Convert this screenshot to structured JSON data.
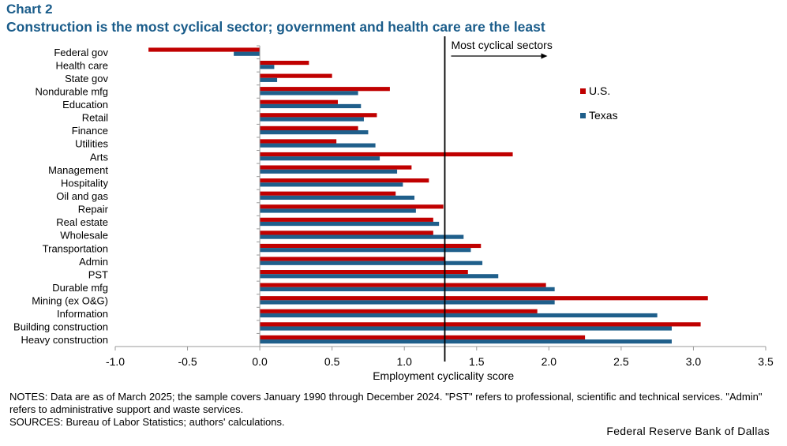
{
  "header": {
    "chart_label": "Chart 2",
    "title": "Construction is the most cyclical sector; government and health care are the least"
  },
  "chart_data": {
    "type": "bar",
    "orientation": "horizontal",
    "categories": [
      "Federal gov",
      "Health care",
      "State gov",
      "Nondurable mfg",
      "Education",
      "Retail",
      "Finance",
      "Utilities",
      "Arts",
      "Management",
      "Hospitality",
      "Oil and gas",
      "Repair",
      "Real estate",
      "Wholesale",
      "Transportation",
      "Admin",
      "PST",
      "Durable mfg",
      "Mining (ex O&G)",
      "Information",
      "Building construction",
      "Heavy construction"
    ],
    "series": [
      {
        "name": "U.S.",
        "color": "#c00000",
        "values": [
          -0.77,
          0.34,
          0.5,
          0.9,
          0.54,
          0.81,
          0.68,
          0.53,
          1.75,
          1.05,
          1.17,
          0.94,
          1.27,
          1.2,
          1.2,
          1.53,
          1.28,
          1.44,
          1.98,
          3.1,
          1.92,
          3.05,
          2.25
        ]
      },
      {
        "name": "Texas",
        "color": "#1f5f8b",
        "values": [
          -0.18,
          0.1,
          0.12,
          0.68,
          0.7,
          0.72,
          0.75,
          0.8,
          0.83,
          0.95,
          0.99,
          1.07,
          1.08,
          1.24,
          1.41,
          1.46,
          1.54,
          1.65,
          2.04,
          2.04,
          2.75,
          2.85,
          2.85
        ]
      }
    ],
    "xlim": [
      -1.0,
      3.5
    ],
    "xticks": [
      "-1.0",
      "-0.5",
      "0.0",
      "0.5",
      "1.0",
      "1.5",
      "2.0",
      "2.5",
      "3.0",
      "3.5"
    ],
    "xlabel": "Employment cyclicality score",
    "ylabel": "",
    "threshold": 1.28,
    "annotation": "Most cyclical sectors",
    "legend_position": "top-right",
    "grid": false
  },
  "footer": {
    "notes": "NOTES: Data are as of March 2025; the sample covers January 1990 through December 2024. \"PST\" refers to professional, scientific and technical services. \"Admin\" refers to administrative support and waste services.",
    "sources": "SOURCES: Bureau of Labor Statistics; authors' calculations.",
    "brand": "Federal Reserve Bank of Dallas"
  }
}
